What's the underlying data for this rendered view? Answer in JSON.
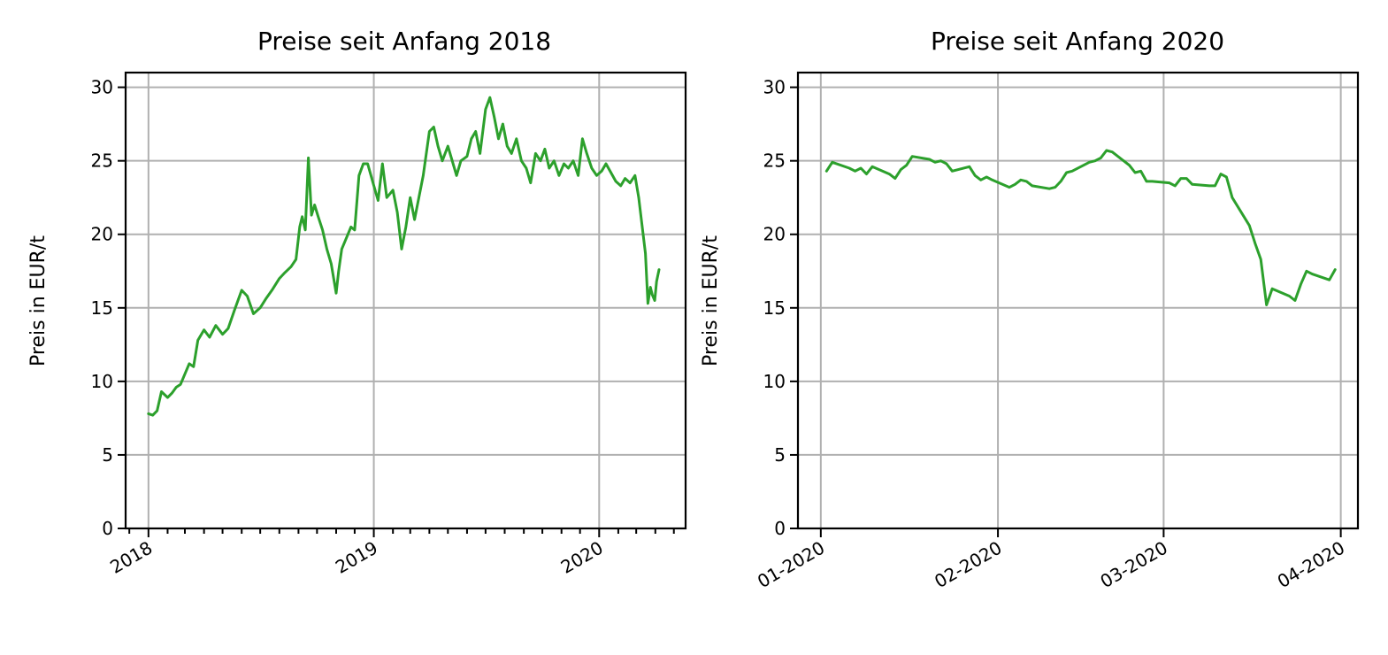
{
  "colors": {
    "series": "#2ca02c"
  },
  "chart_data": [
    {
      "type": "line",
      "title": "Preise seit Anfang 2018",
      "xlabel": "",
      "ylabel": "Preis in EUR/t",
      "x_axis": "date",
      "xlim": [
        "2017-11-25",
        "2020-05-20"
      ],
      "ylim": [
        0,
        31
      ],
      "yticks": [
        0,
        5,
        10,
        15,
        20,
        25,
        30
      ],
      "xticks": [
        {
          "date": "2018-01-01",
          "label": "2018"
        },
        {
          "date": "2019-01-01",
          "label": "2019"
        },
        {
          "date": "2020-01-01",
          "label": "2020"
        }
      ],
      "minor_xticks": "monthly",
      "grid": true,
      "series": [
        {
          "x": [
            "2018-01-01",
            "2018-01-08",
            "2018-01-15",
            "2018-01-22",
            "2018-02-01",
            "2018-02-08",
            "2018-02-15",
            "2018-02-22",
            "2018-03-01",
            "2018-03-08",
            "2018-03-15",
            "2018-03-22",
            "2018-04-01",
            "2018-04-10",
            "2018-04-20",
            "2018-05-01",
            "2018-05-10",
            "2018-05-20",
            "2018-06-01",
            "2018-06-10",
            "2018-06-20",
            "2018-07-01",
            "2018-07-10",
            "2018-07-20",
            "2018-08-01",
            "2018-08-10",
            "2018-08-20",
            "2018-08-28",
            "2018-09-03",
            "2018-09-07",
            "2018-09-12",
            "2018-09-17",
            "2018-09-22",
            "2018-09-27",
            "2018-10-03",
            "2018-10-10",
            "2018-10-17",
            "2018-10-24",
            "2018-11-01",
            "2018-11-05",
            "2018-11-10",
            "2018-11-18",
            "2018-11-25",
            "2018-12-01",
            "2018-12-08",
            "2018-12-15",
            "2018-12-22",
            "2019-01-01",
            "2019-01-08",
            "2019-01-15",
            "2019-01-22",
            "2019-02-01",
            "2019-02-08",
            "2019-02-15",
            "2019-02-22",
            "2019-03-01",
            "2019-03-08",
            "2019-03-15",
            "2019-03-22",
            "2019-04-01",
            "2019-04-08",
            "2019-04-15",
            "2019-04-22",
            "2019-05-01",
            "2019-05-08",
            "2019-05-15",
            "2019-05-22",
            "2019-06-01",
            "2019-06-08",
            "2019-06-15",
            "2019-06-22",
            "2019-07-01",
            "2019-07-08",
            "2019-07-15",
            "2019-07-22",
            "2019-07-29",
            "2019-08-05",
            "2019-08-12",
            "2019-08-20",
            "2019-08-28",
            "2019-09-05",
            "2019-09-12",
            "2019-09-20",
            "2019-09-28",
            "2019-10-05",
            "2019-10-12",
            "2019-10-20",
            "2019-10-28",
            "2019-11-05",
            "2019-11-12",
            "2019-11-20",
            "2019-11-28",
            "2019-12-05",
            "2019-12-12",
            "2019-12-20",
            "2019-12-28",
            "2020-01-05",
            "2020-01-12",
            "2020-01-20",
            "2020-01-28",
            "2020-02-05",
            "2020-02-12",
            "2020-02-20",
            "2020-02-28",
            "2020-03-05",
            "2020-03-10",
            "2020-03-16",
            "2020-03-20",
            "2020-03-24",
            "2020-03-27",
            "2020-03-31",
            "2020-04-03",
            "2020-04-07"
          ],
          "y": [
            7.8,
            7.7,
            8.0,
            9.3,
            8.9,
            9.2,
            9.6,
            9.8,
            10.5,
            11.2,
            11.0,
            12.8,
            13.5,
            13.0,
            13.8,
            13.2,
            13.6,
            14.8,
            16.2,
            15.8,
            14.6,
            15.0,
            15.6,
            16.2,
            17.0,
            17.4,
            17.8,
            18.3,
            20.5,
            21.2,
            20.3,
            25.2,
            21.3,
            22.0,
            21.2,
            20.3,
            19.0,
            18.0,
            16.0,
            17.5,
            19.0,
            19.8,
            20.5,
            20.3,
            24.0,
            24.8,
            24.8,
            23.3,
            22.3,
            24.8,
            22.5,
            23.0,
            21.5,
            19.0,
            20.5,
            22.5,
            21.0,
            22.5,
            24.0,
            27.0,
            27.3,
            26.0,
            25.0,
            26.0,
            25.0,
            24.0,
            25.0,
            25.3,
            26.5,
            27.0,
            25.5,
            28.5,
            29.3,
            28.0,
            26.5,
            27.5,
            26.0,
            25.5,
            26.5,
            25.0,
            24.5,
            23.5,
            25.5,
            25.0,
            25.8,
            24.5,
            25.0,
            24.0,
            24.8,
            24.5,
            25.0,
            24.0,
            26.5,
            25.5,
            24.5,
            24.0,
            24.3,
            24.8,
            24.2,
            23.6,
            23.3,
            23.8,
            23.5,
            24.0,
            22.5,
            20.8,
            18.7,
            15.3,
            16.4,
            15.9,
            15.5,
            16.8,
            17.6
          ]
        }
      ]
    },
    {
      "type": "line",
      "title": "Preise seit Anfang 2020",
      "xlabel": "",
      "ylabel": "Preis in EUR/t",
      "x_axis": "date",
      "xlim": [
        "2019-12-28",
        "2020-04-04"
      ],
      "ylim": [
        0,
        31
      ],
      "yticks": [
        0,
        5,
        10,
        15,
        20,
        25,
        30
      ],
      "xticks": [
        {
          "date": "2020-01-01",
          "label": "01-2020"
        },
        {
          "date": "2020-02-01",
          "label": "02-2020"
        },
        {
          "date": "2020-03-01",
          "label": "03-2020"
        },
        {
          "date": "2020-04-01",
          "label": "04-2020"
        }
      ],
      "grid": true,
      "series": [
        {
          "x": [
            "2020-01-02",
            "2020-01-03",
            "2020-01-06",
            "2020-01-07",
            "2020-01-08",
            "2020-01-09",
            "2020-01-10",
            "2020-01-13",
            "2020-01-14",
            "2020-01-15",
            "2020-01-16",
            "2020-01-17",
            "2020-01-20",
            "2020-01-21",
            "2020-01-22",
            "2020-01-23",
            "2020-01-24",
            "2020-01-27",
            "2020-01-28",
            "2020-01-29",
            "2020-01-30",
            "2020-01-31",
            "2020-02-03",
            "2020-02-04",
            "2020-02-05",
            "2020-02-06",
            "2020-02-07",
            "2020-02-10",
            "2020-02-11",
            "2020-02-12",
            "2020-02-13",
            "2020-02-14",
            "2020-02-17",
            "2020-02-18",
            "2020-02-19",
            "2020-02-20",
            "2020-02-21",
            "2020-02-24",
            "2020-02-25",
            "2020-02-26",
            "2020-02-27",
            "2020-02-28",
            "2020-03-02",
            "2020-03-03",
            "2020-03-04",
            "2020-03-05",
            "2020-03-06",
            "2020-03-09",
            "2020-03-10",
            "2020-03-11",
            "2020-03-12",
            "2020-03-13",
            "2020-03-16",
            "2020-03-17",
            "2020-03-18",
            "2020-03-19",
            "2020-03-20",
            "2020-03-23",
            "2020-03-24",
            "2020-03-25",
            "2020-03-26",
            "2020-03-27",
            "2020-03-30",
            "2020-03-31"
          ],
          "y": [
            24.3,
            24.9,
            24.5,
            24.3,
            24.5,
            24.1,
            24.6,
            24.1,
            23.8,
            24.4,
            24.7,
            25.3,
            25.1,
            24.9,
            25.0,
            24.8,
            24.3,
            24.6,
            24.0,
            23.7,
            23.9,
            23.7,
            23.2,
            23.4,
            23.7,
            23.6,
            23.3,
            23.1,
            23.2,
            23.6,
            24.2,
            24.3,
            24.9,
            25.0,
            25.2,
            25.7,
            25.6,
            24.7,
            24.2,
            24.3,
            23.6,
            23.6,
            23.5,
            23.3,
            23.8,
            23.8,
            23.4,
            23.3,
            23.3,
            24.1,
            23.9,
            22.5,
            20.6,
            19.4,
            18.3,
            15.2,
            16.3,
            15.8,
            15.5,
            16.6,
            17.5,
            17.3,
            16.9,
            17.6
          ]
        }
      ]
    }
  ]
}
